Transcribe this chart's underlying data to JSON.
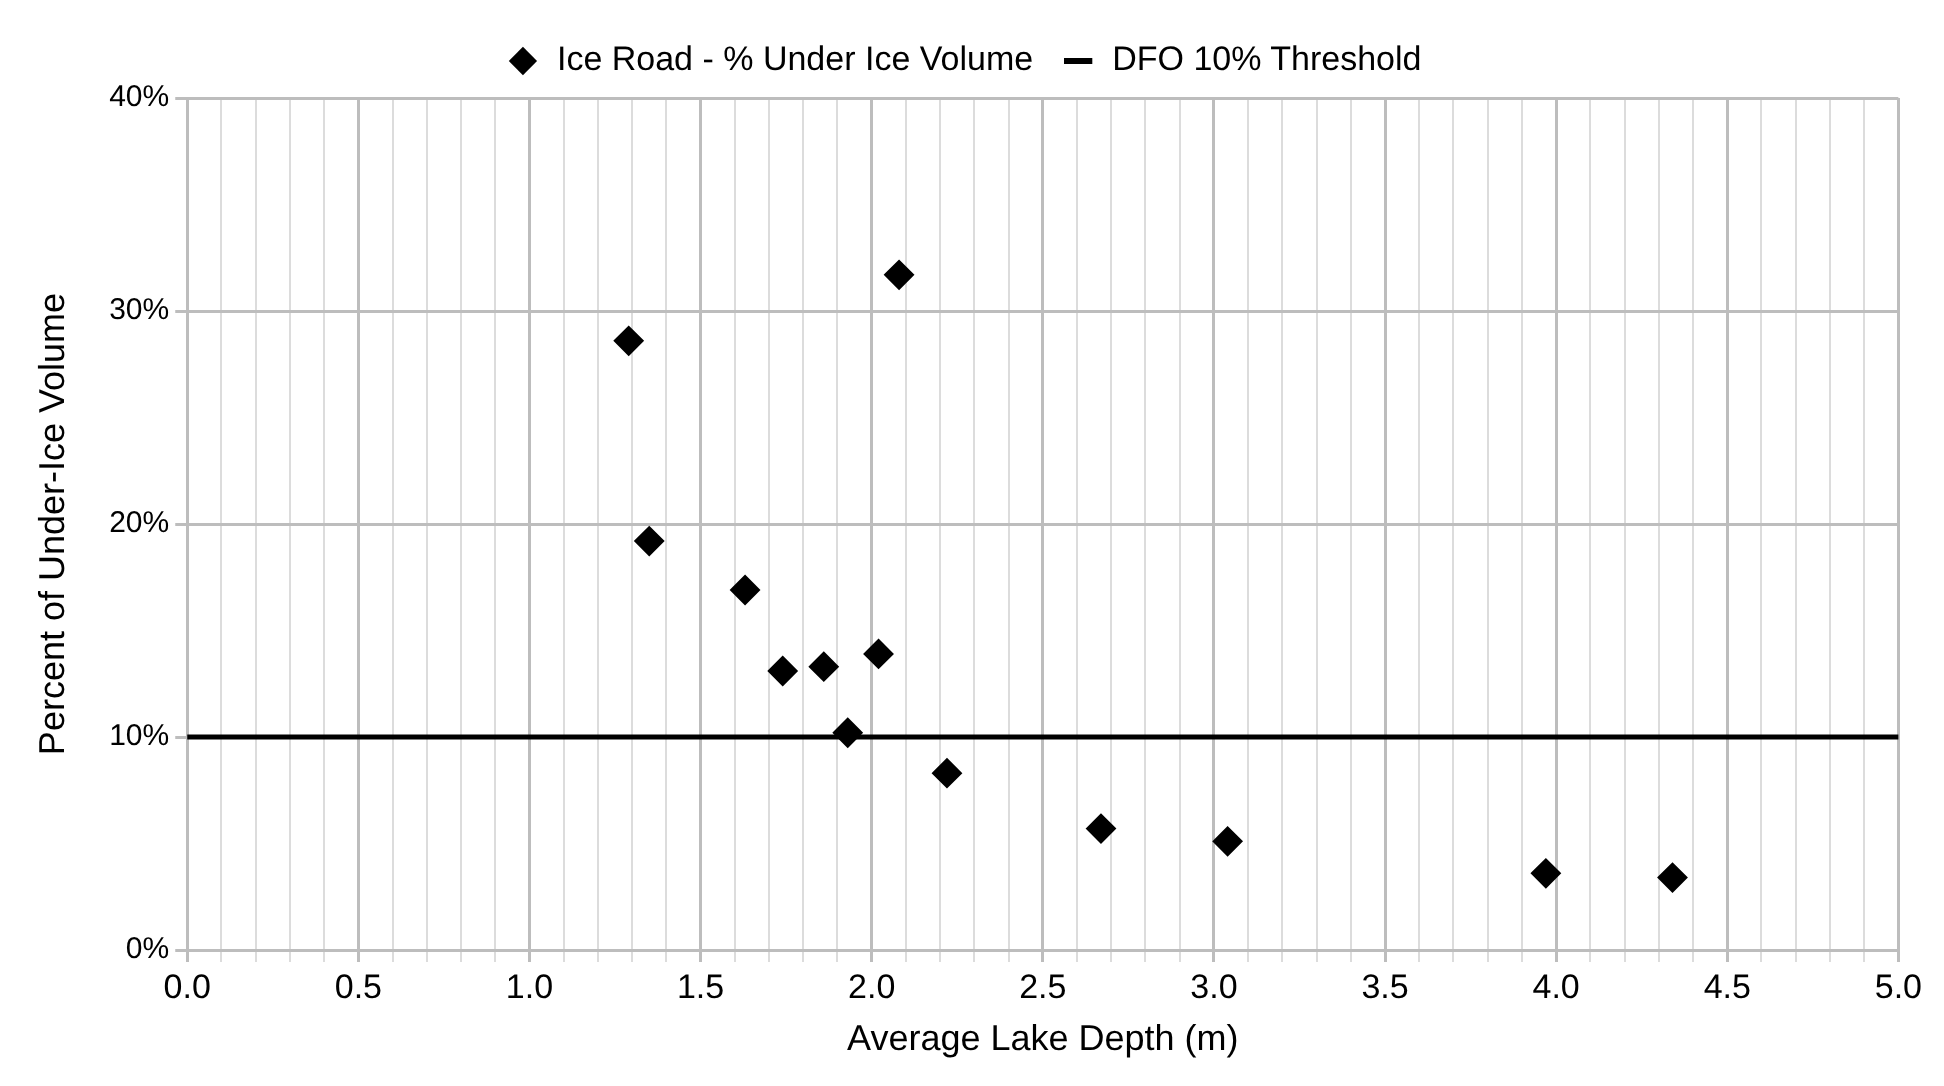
{
  "chart_data": {
    "type": "scatter",
    "xlabel": "Average Lake Depth (m)",
    "ylabel": "Percent of Under-Ice Volume",
    "series": [
      {
        "name": "Ice Road - % Under Ice Volume",
        "color": "#000000",
        "x": [
          1.29,
          1.35,
          1.63,
          1.74,
          1.86,
          1.93,
          2.02,
          2.08,
          2.22,
          2.67,
          3.04,
          3.97,
          4.34
        ],
        "values": [
          28.6,
          19.2,
          16.9,
          13.1,
          13.3,
          10.2,
          13.9,
          31.7,
          8.3,
          5.7,
          5.1,
          3.6,
          3.4
        ]
      }
    ],
    "ref_lines": [
      {
        "axis": "y",
        "value": 10,
        "label": "DFO 10% Threshold",
        "color": "#000000",
        "line_style": "solid"
      }
    ],
    "xlim": [
      0,
      5
    ],
    "ylim": [
      0,
      40
    ],
    "xticks": [
      {
        "value": 0,
        "label": "0.0"
      },
      {
        "value": 0.1,
        "label": null
      },
      {
        "value": 0.2,
        "label": null
      },
      {
        "value": 0.3,
        "label": null
      },
      {
        "value": 0.4,
        "label": null
      },
      {
        "value": 0.5,
        "label": "0.5"
      },
      {
        "value": 0.6,
        "label": null
      },
      {
        "value": 0.7,
        "label": null
      },
      {
        "value": 0.8,
        "label": null
      },
      {
        "value": 0.9,
        "label": null
      },
      {
        "value": 1,
        "label": "1.0"
      },
      {
        "value": 1.1,
        "label": null
      },
      {
        "value": 1.2,
        "label": null
      },
      {
        "value": 1.3,
        "label": null
      },
      {
        "value": 1.4,
        "label": null
      },
      {
        "value": 1.5,
        "label": "1.5"
      },
      {
        "value": 1.6,
        "label": null
      },
      {
        "value": 1.7,
        "label": null
      },
      {
        "value": 1.8,
        "label": null
      },
      {
        "value": 1.9,
        "label": null
      },
      {
        "value": 2,
        "label": "2.0"
      },
      {
        "value": 2.1,
        "label": null
      },
      {
        "value": 2.2,
        "label": null
      },
      {
        "value": 2.3,
        "label": null
      },
      {
        "value": 2.4,
        "label": null
      },
      {
        "value": 2.5,
        "label": "2.5"
      },
      {
        "value": 2.6,
        "label": null
      },
      {
        "value": 2.7,
        "label": null
      },
      {
        "value": 2.8,
        "label": null
      },
      {
        "value": 2.9,
        "label": null
      },
      {
        "value": 3,
        "label": "3.0"
      },
      {
        "value": 3.1,
        "label": null
      },
      {
        "value": 3.2,
        "label": null
      },
      {
        "value": 3.3,
        "label": null
      },
      {
        "value": 3.4,
        "label": null
      },
      {
        "value": 3.5,
        "label": "3.5"
      },
      {
        "value": 3.6,
        "label": null
      },
      {
        "value": 3.7,
        "label": null
      },
      {
        "value": 3.8,
        "label": null
      },
      {
        "value": 3.9,
        "label": null
      },
      {
        "value": 4,
        "label": "4.0"
      },
      {
        "value": 4.1,
        "label": null
      },
      {
        "value": 4.2,
        "label": null
      },
      {
        "value": 4.3,
        "label": null
      },
      {
        "value": 4.4,
        "label": null
      },
      {
        "value": 4.5,
        "label": "4.5"
      },
      {
        "value": 4.6,
        "label": null
      },
      {
        "value": 4.7,
        "label": null
      },
      {
        "value": 4.8,
        "label": null
      },
      {
        "value": 4.9,
        "label": null
      },
      {
        "value": 5,
        "label": "5.0"
      }
    ],
    "yticks": [
      {
        "value": 0,
        "label": "0%"
      },
      {
        "value": 10,
        "label": "10%"
      },
      {
        "value": 20,
        "label": "20%"
      },
      {
        "value": 30,
        "label": "30%"
      },
      {
        "value": 40,
        "label": "40%"
      }
    ],
    "grid": true,
    "legend": "top",
    "marker": "diamond"
  }
}
